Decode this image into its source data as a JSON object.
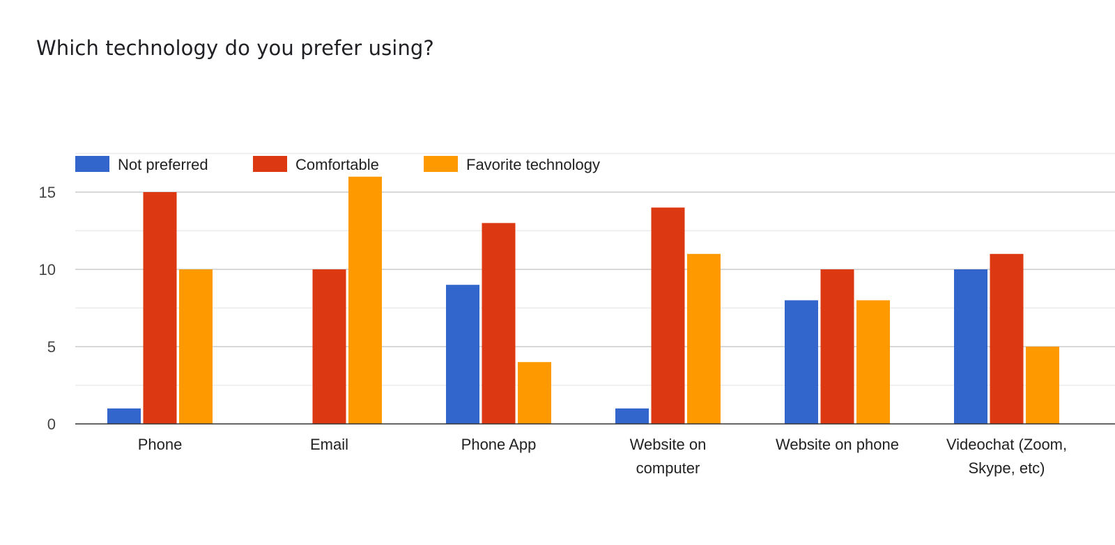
{
  "page_title": "Which technology do you prefer using?",
  "colors": {
    "Not preferred": "#3366cc",
    "Comfortable": "#dc3912",
    "Favorite technology": "#ff9900",
    "gridline": "#cccccc",
    "minor_gridline": "#ebebeb",
    "axis": "#333333"
  },
  "chart_data": {
    "type": "bar",
    "title": "Which technology do you prefer using?",
    "xlabel": "",
    "ylabel": "",
    "ylim": [
      0,
      17.5
    ],
    "yticks": [
      0,
      5,
      10,
      15
    ],
    "grid": true,
    "legend_position": "top-left",
    "categories": [
      [
        "Phone"
      ],
      [
        "Email"
      ],
      [
        "Phone App"
      ],
      [
        "Website on",
        "computer"
      ],
      [
        "Website on phone"
      ],
      [
        "Videochat (Zoom,",
        "Skype, etc)"
      ]
    ],
    "series": [
      {
        "name": "Not preferred",
        "values": [
          1,
          0,
          9,
          1,
          8,
          10
        ]
      },
      {
        "name": "Comfortable",
        "values": [
          15,
          10,
          13,
          14,
          10,
          11
        ]
      },
      {
        "name": "Favorite technology",
        "values": [
          10,
          16,
          4,
          11,
          8,
          5
        ]
      }
    ]
  }
}
